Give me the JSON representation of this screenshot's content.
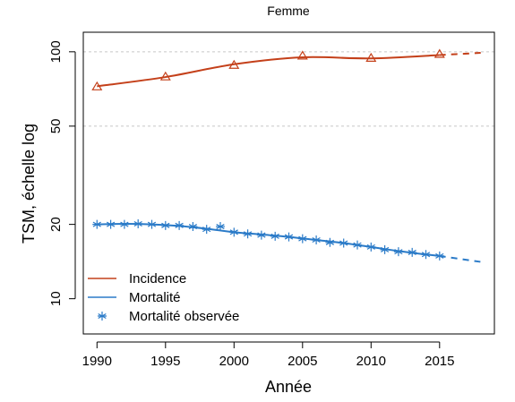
{
  "chart_data": {
    "type": "line",
    "title": "Femme",
    "xlabel": "Année",
    "ylabel": "TSM, échelle log",
    "y_scale": "log",
    "xlim": [
      1989,
      2019
    ],
    "ylim": [
      7.2,
      120
    ],
    "x_ticks": [
      1990,
      1995,
      2000,
      2005,
      2010,
      2015
    ],
    "y_ticks": [
      10,
      20,
      50,
      100
    ],
    "grid_lines_y": [
      50,
      100
    ],
    "legend_position": "bottom-left",
    "colors": {
      "incidence": "#C4401A",
      "mortality": "#2B7BC8"
    },
    "series": [
      {
        "name": "Incidence",
        "kind": "fitted",
        "color": "#C4401A",
        "x": [
          1990,
          1995,
          2000,
          2005,
          2010,
          2015
        ],
        "values": [
          72.5,
          79,
          89,
          95,
          94,
          97
        ]
      },
      {
        "name": "Incidence",
        "kind": "projection",
        "color": "#C4401A",
        "x": [
          2015,
          2018
        ],
        "values": [
          97,
          99
        ]
      },
      {
        "name": "Incidence",
        "kind": "observed",
        "marker": "triangle",
        "color": "#C4401A",
        "x": [
          1990,
          1995,
          2000,
          2005,
          2010,
          2015
        ],
        "values": [
          72,
          79,
          88,
          96,
          94,
          97.5
        ]
      },
      {
        "name": "Mortalité",
        "kind": "fitted",
        "color": "#2B7BC8",
        "x": [
          1990,
          1992,
          1994,
          1996,
          1998,
          2000,
          2002,
          2004,
          2006,
          2008,
          2010,
          2012,
          2014,
          2015
        ],
        "values": [
          20,
          20.1,
          20,
          19.7,
          19.2,
          18.6,
          18.2,
          17.8,
          17.3,
          16.8,
          16.2,
          15.6,
          15.1,
          14.9
        ]
      },
      {
        "name": "Mortalité",
        "kind": "projection",
        "color": "#2B7BC8",
        "x": [
          2015,
          2018
        ],
        "values": [
          14.9,
          14.1
        ]
      },
      {
        "name": "Mortalité observée",
        "kind": "observed",
        "marker": "asterisk",
        "color": "#2B7BC8",
        "x": [
          1990,
          1991,
          1992,
          1993,
          1994,
          1995,
          1996,
          1997,
          1998,
          1999,
          2000,
          2001,
          2002,
          2003,
          2004,
          2005,
          2006,
          2007,
          2008,
          2009,
          2010,
          2011,
          2012,
          2013,
          2014,
          2015
        ],
        "values": [
          20,
          20,
          20,
          20.1,
          20,
          19.8,
          19.8,
          19.6,
          19.1,
          19.6,
          18.6,
          18.3,
          18.1,
          17.9,
          17.8,
          17.5,
          17.3,
          16.9,
          16.8,
          16.5,
          16.2,
          15.8,
          15.5,
          15.4,
          15.1,
          14.9
        ]
      }
    ],
    "legend": [
      {
        "label": "Incidence",
        "symbol": "line",
        "color": "#C4401A"
      },
      {
        "label": "Mortalité",
        "symbol": "line",
        "color": "#2B7BC8"
      },
      {
        "label": "Mortalité observée",
        "symbol": "asterisk",
        "color": "#2B7BC8"
      }
    ]
  }
}
